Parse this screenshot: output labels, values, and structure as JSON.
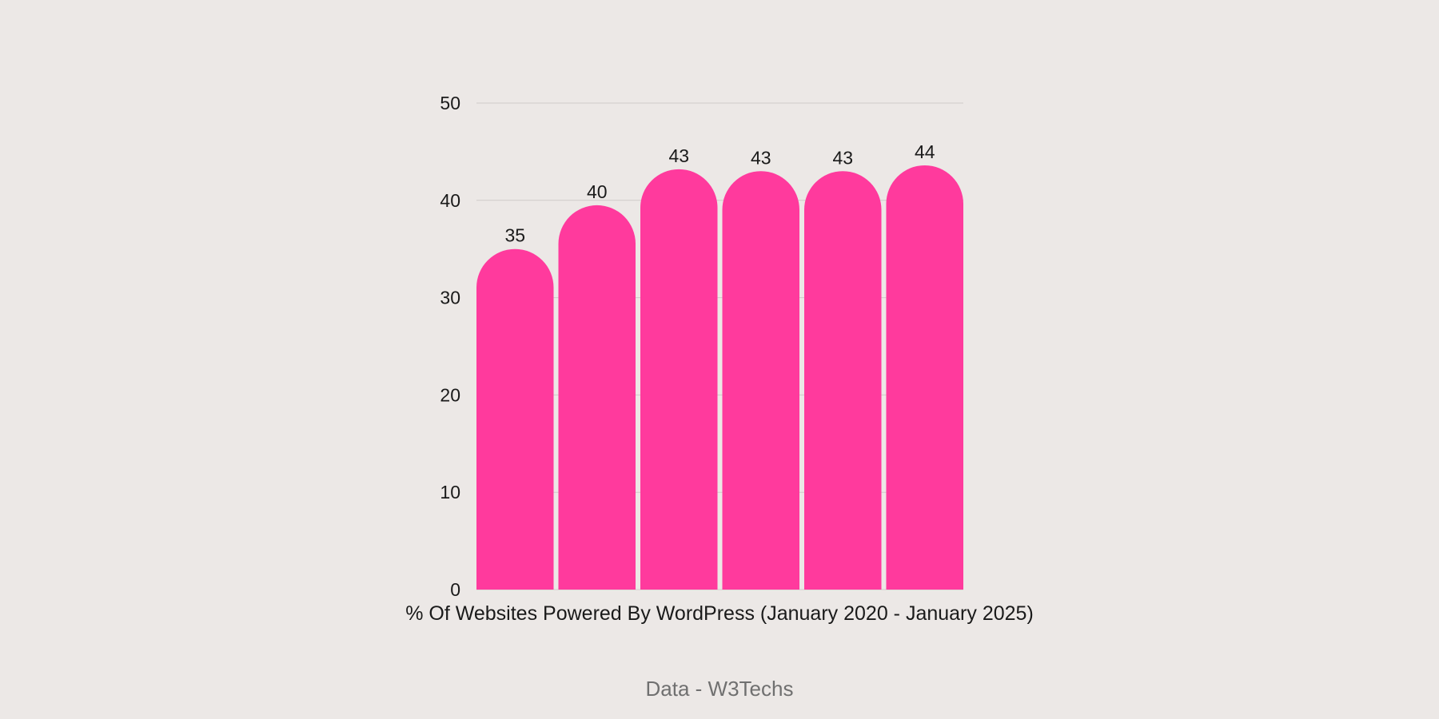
{
  "chart_data": {
    "type": "bar",
    "categories": [
      "",
      "",
      "",
      "",
      "",
      ""
    ],
    "values": [
      35.0,
      39.5,
      43.2,
      43.0,
      43.0,
      43.6
    ],
    "data_labels": [
      "35",
      "40",
      "43",
      "43",
      "43",
      "44"
    ],
    "xlabel": "% Of Websites Powered By WordPress (January 2020 - January 2025)",
    "ylabel": "",
    "ylim": [
      0,
      50
    ],
    "yticks": [
      0,
      10,
      20,
      30,
      40,
      50
    ],
    "grid": true,
    "bar_color": "#FF3A9D",
    "background": "#ECE8E6",
    "bar_style": "rounded-top"
  },
  "source": "Data - W3Techs"
}
